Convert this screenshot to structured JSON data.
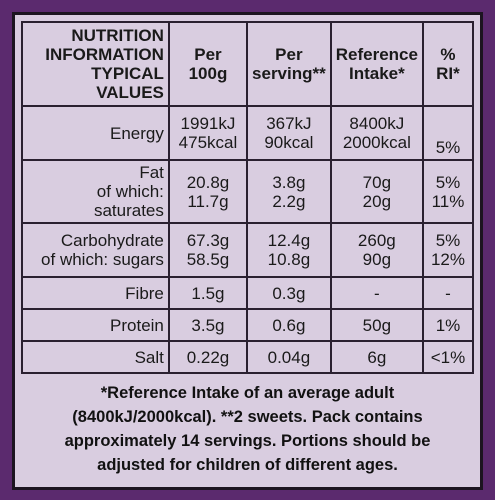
{
  "table": {
    "header": [
      [
        "NUTRITION",
        "INFORMATION",
        "TYPICAL VALUES"
      ],
      [
        "Per",
        "100g"
      ],
      [
        "Per",
        "serving**"
      ],
      [
        "Reference",
        "Intake*"
      ],
      [
        "%",
        "RI*"
      ]
    ],
    "rows": [
      [
        [
          "Energy"
        ],
        [
          "1991kJ",
          "475kcal"
        ],
        [
          "367kJ",
          "90kcal"
        ],
        [
          "8400kJ",
          "2000kcal"
        ],
        [
          "5%"
        ]
      ],
      [
        [
          "Fat",
          "of which: saturates"
        ],
        [
          "20.8g",
          "11.7g"
        ],
        [
          "3.8g",
          "2.2g"
        ],
        [
          "70g",
          "20g"
        ],
        [
          "5%",
          "11%"
        ]
      ],
      [
        [
          "Carbohydrate",
          "of which: sugars"
        ],
        [
          "67.3g",
          "58.5g"
        ],
        [
          "12.4g",
          "10.8g"
        ],
        [
          "260g",
          "90g"
        ],
        [
          "5%",
          "12%"
        ]
      ],
      [
        [
          "Fibre"
        ],
        [
          "1.5g"
        ],
        [
          "0.3g"
        ],
        [
          "-"
        ],
        [
          "-"
        ]
      ],
      [
        [
          "Protein"
        ],
        [
          "3.5g"
        ],
        [
          "0.6g"
        ],
        [
          "50g"
        ],
        [
          "1%"
        ]
      ],
      [
        [
          "Salt"
        ],
        [
          "0.22g"
        ],
        [
          "0.04g"
        ],
        [
          "6g"
        ],
        [
          "<1%"
        ]
      ]
    ]
  },
  "footnote": [
    "*Reference Intake of an average adult",
    "(8400kJ/2000kcal). **2 sweets. Pack contains",
    "approximately 14 servings. Portions should be",
    "adjusted for children of different ages."
  ]
}
